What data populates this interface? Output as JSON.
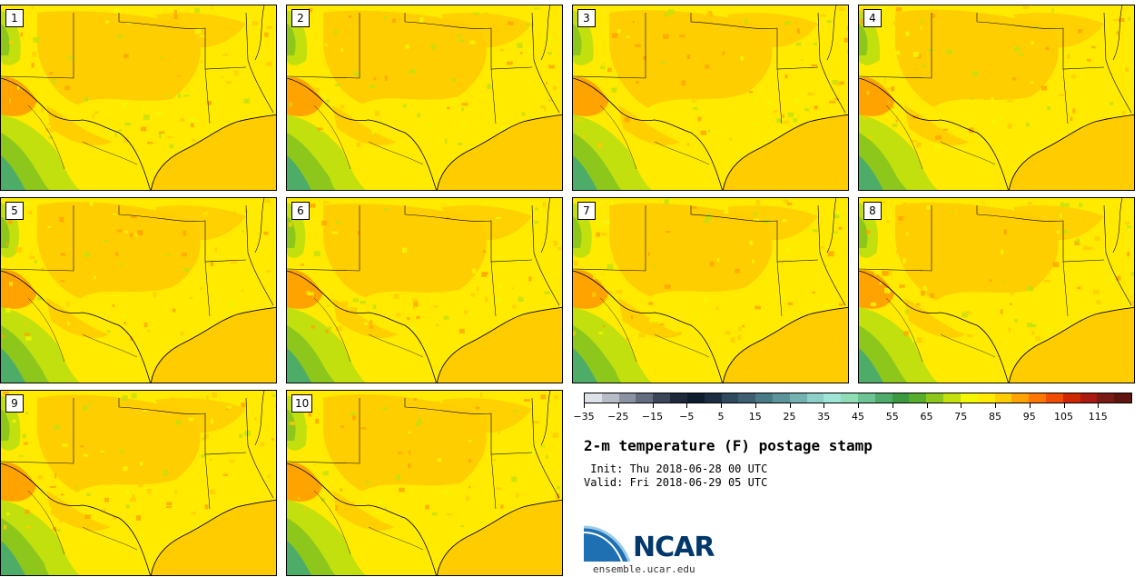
{
  "panels": [
    {
      "label": "1"
    },
    {
      "label": "2"
    },
    {
      "label": "3"
    },
    {
      "label": "4"
    },
    {
      "label": "5"
    },
    {
      "label": "6"
    },
    {
      "label": "7"
    },
    {
      "label": "8"
    },
    {
      "label": "9"
    },
    {
      "label": "10"
    }
  ],
  "colorbar": {
    "colors": [
      "#dfe1e8",
      "#b7bcc6",
      "#8b93a3",
      "#646d7f",
      "#3b4658",
      "#1e2a3c",
      "#0f1c2e",
      "#1c2d42",
      "#2f4a5e",
      "#3d5f70",
      "#4a7a85",
      "#5b959b",
      "#74b2b1",
      "#8dd0c8",
      "#9fe4d4",
      "#8fdcb6",
      "#6cc494",
      "#4cac68",
      "#3b9a40",
      "#58ad2a",
      "#8dc71c",
      "#c2e00e",
      "#f3f700",
      "#ffea00",
      "#ffcc00",
      "#ffa300",
      "#ff7700",
      "#f04d00",
      "#cf2800",
      "#aa1a0e",
      "#7a1a14",
      "#5e1510"
    ],
    "tick_labels": [
      "−35",
      "−25",
      "−15",
      "−5",
      "5",
      "15",
      "25",
      "35",
      "45",
      "55",
      "65",
      "75",
      "85",
      "95",
      "105",
      "115"
    ]
  },
  "title": "2-m temperature (F) postage stamp",
  "init": " Init: Thu 2018-06-28 00 UTC",
  "valid": "Valid: Fri 2018-06-29 05 UTC",
  "logo": {
    "text": "NCAR"
  },
  "site": "ensemble.ucar.edu"
}
